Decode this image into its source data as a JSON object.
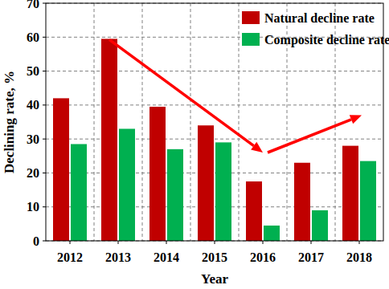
{
  "chart_data": {
    "type": "bar",
    "x_label": "Year",
    "y_label": "Declining rate, %",
    "categories": [
      "2012",
      "2013",
      "2014",
      "2015",
      "2016",
      "2017",
      "2018"
    ],
    "series": [
      {
        "name": "Natural decline rate",
        "color": "#c00000",
        "values": [
          42,
          59.5,
          39.5,
          34,
          17.5,
          23,
          28
        ]
      },
      {
        "name": "Composite decline rate",
        "color": "#00b050",
        "values": [
          28.5,
          33,
          27,
          29,
          4.5,
          9,
          23.5
        ]
      }
    ],
    "ylim": [
      0,
      70
    ],
    "yticks": [
      0,
      10,
      20,
      30,
      40,
      50,
      60,
      70
    ],
    "grid": true,
    "legend": "upper right"
  }
}
